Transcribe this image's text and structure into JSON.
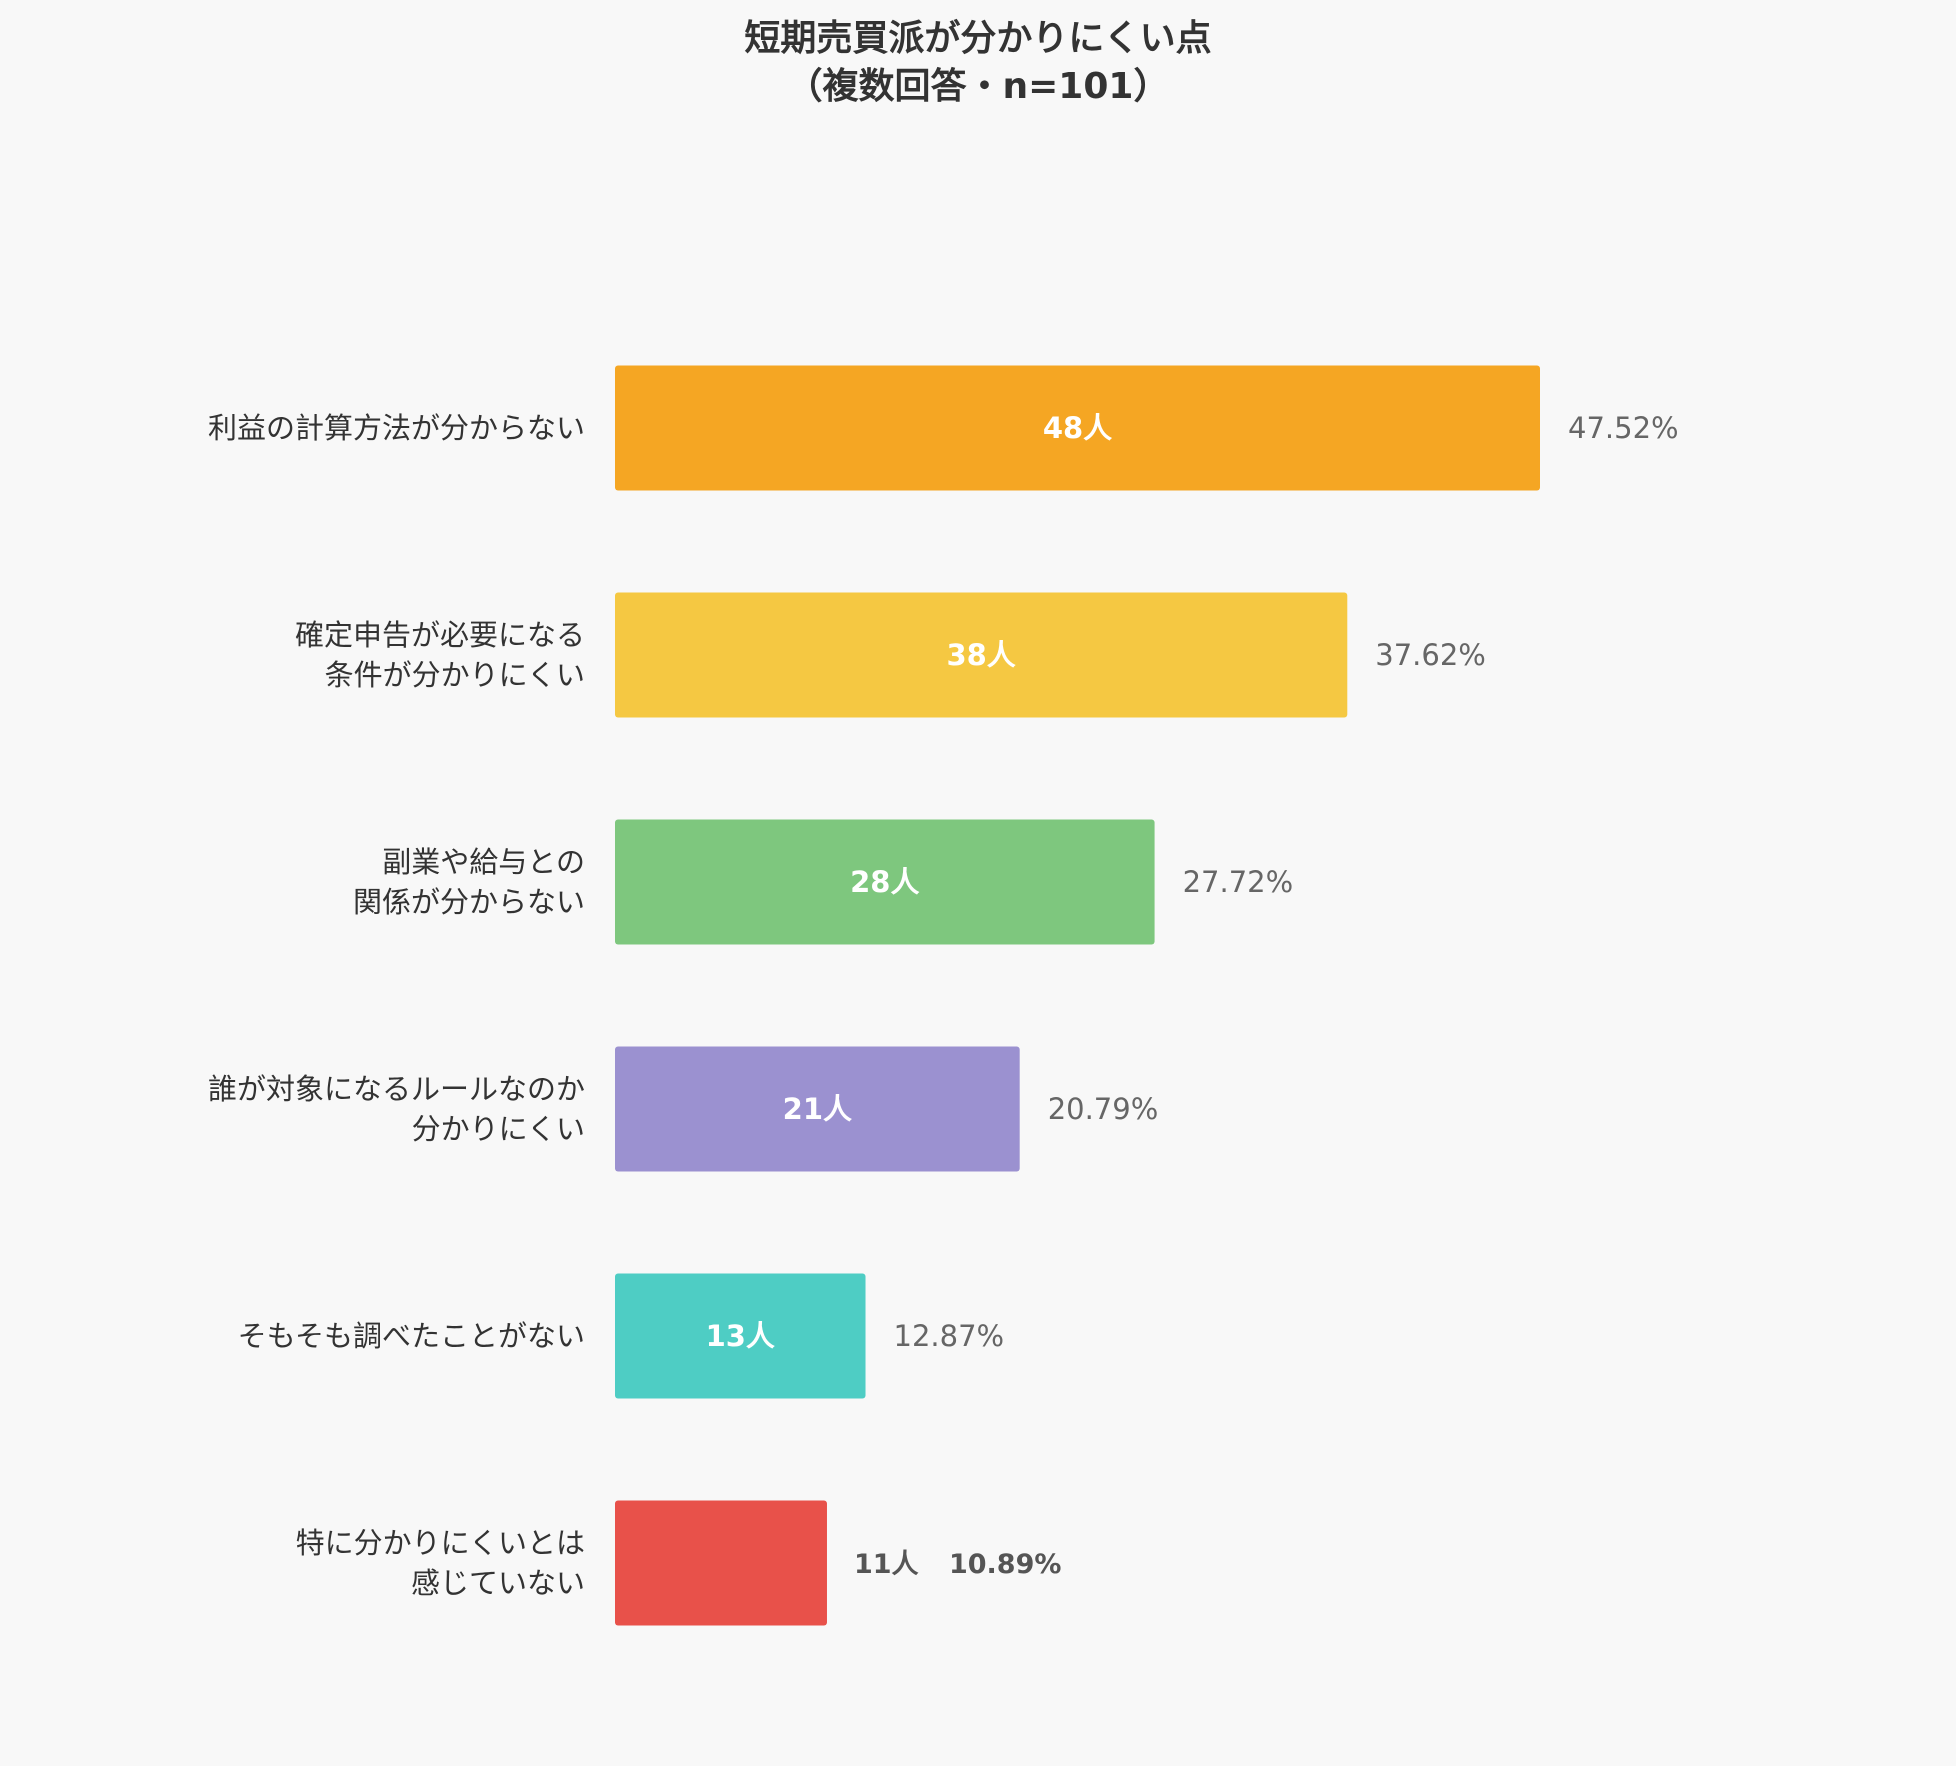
{
  "chart_data": {
    "type": "bar",
    "orientation": "horizontal",
    "title": [
      "短期売買派が分かりにくい点",
      "（複数回答・n=101）"
    ],
    "categories": [
      [
        "利益の計算方法が分からない"
      ],
      [
        "確定申告が必要になる",
        "条件が分かりにくい"
      ],
      [
        "副業や給与との",
        "関係が分からない"
      ],
      [
        "誰が対象になるルールなのか",
        "分かりにくい"
      ],
      [
        "そもそも調べたことがない"
      ],
      [
        "特に分かりにくいとは",
        "感じていない"
      ]
    ],
    "values": [
      48,
      38,
      28,
      21,
      13,
      11
    ],
    "percent_labels": [
      "47.52%",
      "37.62%",
      "27.72%",
      "20.79%",
      "12.87%",
      "10.89%"
    ],
    "value_labels": [
      "48人",
      "38人",
      "28人",
      "21人",
      "13人",
      "11人"
    ],
    "colors": [
      "#f5a623",
      "#f5c842",
      "#7ec77e",
      "#9b91d0",
      "#4ecdc4",
      "#e8514a"
    ],
    "xlim": [
      0,
      48
    ],
    "grid": false,
    "legend": "none"
  }
}
